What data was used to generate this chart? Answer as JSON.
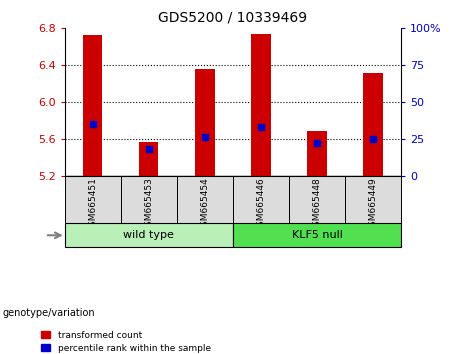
{
  "title": "GDS5200 / 10339469",
  "samples": [
    "GSM665451",
    "GSM665453",
    "GSM665454",
    "GSM665446",
    "GSM665448",
    "GSM665449"
  ],
  "transformed_counts": [
    6.73,
    5.57,
    6.36,
    6.74,
    5.69,
    6.32
  ],
  "percentile_ranks": [
    35,
    18,
    26,
    33,
    22,
    25
  ],
  "y_min": 5.2,
  "y_max": 6.8,
  "y_ticks": [
    5.2,
    5.6,
    6.0,
    6.4,
    6.8
  ],
  "right_y_ticks": [
    0,
    25,
    50,
    75,
    100
  ],
  "right_y_labels": [
    "0",
    "25",
    "50",
    "75",
    "100%"
  ],
  "bar_color": "#CC0000",
  "dot_color": "#0000CC",
  "grid_values": [
    5.6,
    6.0,
    6.4
  ],
  "left_label_color": "#CC0000",
  "right_label_color": "#0000CC",
  "wildtype_color": "#b8f0b8",
  "klf5_color": "#50e050",
  "cell_bg": "#DCDCDC",
  "group_spans": [
    [
      0,
      2,
      "wild type"
    ],
    [
      3,
      5,
      "KLF5 null"
    ]
  ]
}
